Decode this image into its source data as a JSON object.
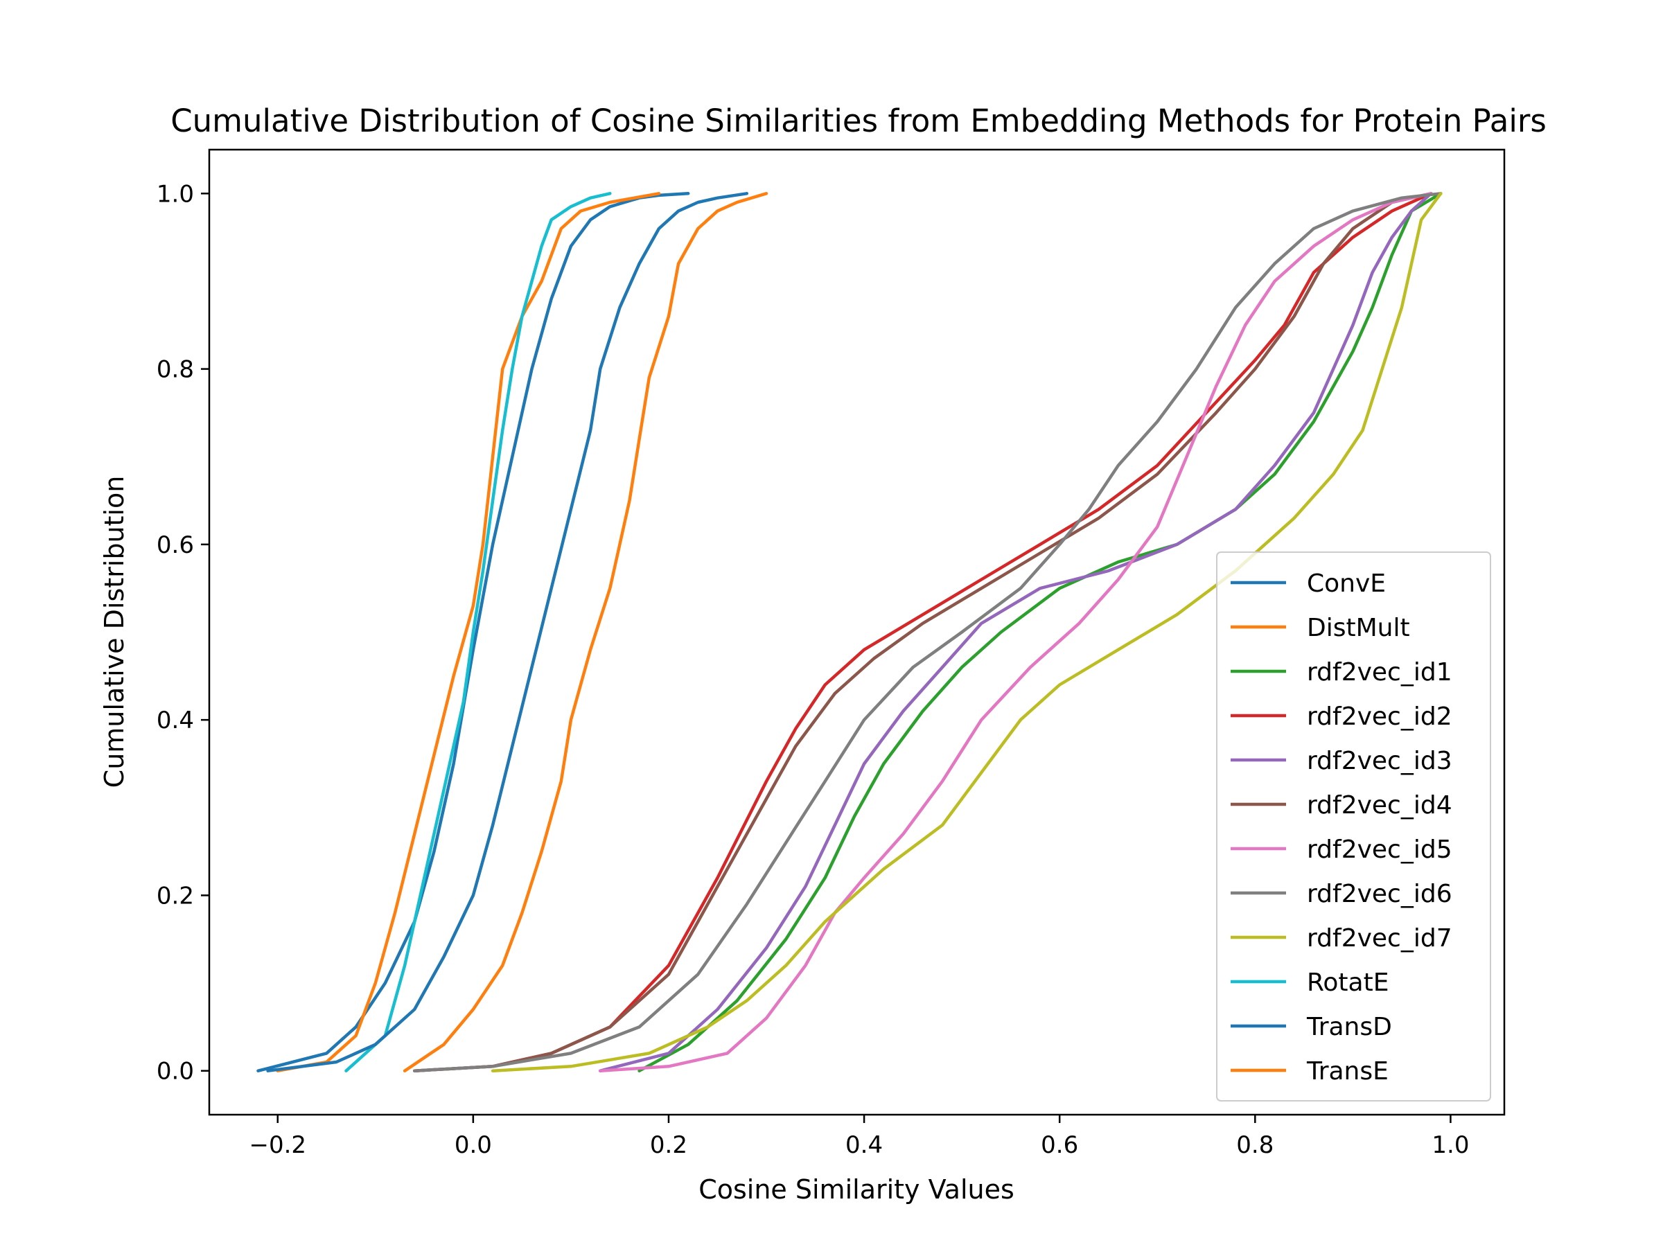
{
  "chart_data": {
    "type": "line",
    "title": "Cumulative Distribution of Cosine Similarities from Embedding Methods for Protein Pairs",
    "xlabel": "Cosine Similarity Values",
    "ylabel": "Cumulative Distribution",
    "xlim": [
      -0.27,
      1.055
    ],
    "ylim": [
      -0.05,
      1.05
    ],
    "xticks": [
      -0.2,
      0.0,
      0.2,
      0.4,
      0.6,
      0.8,
      1.0
    ],
    "xtick_labels": [
      "−0.2",
      "0.0",
      "0.2",
      "0.4",
      "0.6",
      "0.8",
      "1.0"
    ],
    "yticks": [
      0.0,
      0.2,
      0.4,
      0.6,
      0.8,
      1.0
    ],
    "ytick_labels": [
      "0.0",
      "0.2",
      "0.4",
      "0.6",
      "0.8",
      "1.0"
    ],
    "grid": false,
    "legend": "lower-right",
    "series": [
      {
        "name": "ConvE",
        "color": "#1f77b4",
        "x": [
          -0.22,
          -0.15,
          -0.12,
          -0.09,
          -0.06,
          -0.04,
          -0.02,
          0.0,
          0.02,
          0.04,
          0.06,
          0.08,
          0.1,
          0.12,
          0.14,
          0.17,
          0.19,
          0.22
        ],
        "y": [
          0.0,
          0.02,
          0.05,
          0.1,
          0.17,
          0.25,
          0.35,
          0.48,
          0.6,
          0.7,
          0.8,
          0.88,
          0.94,
          0.97,
          0.985,
          0.995,
          0.998,
          1.0
        ]
      },
      {
        "name": "DistMult",
        "color": "#ff7f0e",
        "x": [
          -0.2,
          -0.15,
          -0.12,
          -0.1,
          -0.08,
          -0.06,
          -0.04,
          -0.02,
          0.0,
          0.01,
          0.02,
          0.03,
          0.05,
          0.07,
          0.09,
          0.11,
          0.14,
          0.19
        ],
        "y": [
          0.0,
          0.01,
          0.04,
          0.1,
          0.18,
          0.27,
          0.36,
          0.45,
          0.53,
          0.6,
          0.7,
          0.8,
          0.86,
          0.9,
          0.96,
          0.98,
          0.99,
          1.0
        ]
      },
      {
        "name": "rdf2vec_id1",
        "color": "#2ca02c",
        "x": [
          0.17,
          0.22,
          0.27,
          0.32,
          0.36,
          0.39,
          0.42,
          0.46,
          0.5,
          0.54,
          0.6,
          0.66,
          0.72,
          0.78,
          0.82,
          0.86,
          0.88,
          0.9,
          0.92,
          0.94,
          0.96,
          0.99
        ],
        "y": [
          0.0,
          0.03,
          0.08,
          0.15,
          0.22,
          0.29,
          0.35,
          0.41,
          0.46,
          0.5,
          0.55,
          0.58,
          0.6,
          0.64,
          0.68,
          0.74,
          0.78,
          0.82,
          0.87,
          0.93,
          0.98,
          1.0
        ]
      },
      {
        "name": "rdf2vec_id2",
        "color": "#d62728",
        "x": [
          -0.06,
          0.02,
          0.08,
          0.14,
          0.2,
          0.25,
          0.3,
          0.33,
          0.36,
          0.4,
          0.46,
          0.52,
          0.58,
          0.64,
          0.7,
          0.75,
          0.8,
          0.83,
          0.86,
          0.9,
          0.94,
          0.98
        ],
        "y": [
          0.0,
          0.005,
          0.02,
          0.05,
          0.12,
          0.22,
          0.33,
          0.39,
          0.44,
          0.48,
          0.52,
          0.56,
          0.6,
          0.64,
          0.69,
          0.75,
          0.81,
          0.85,
          0.91,
          0.95,
          0.98,
          1.0
        ]
      },
      {
        "name": "rdf2vec_id3",
        "color": "#9467bd",
        "x": [
          0.13,
          0.2,
          0.25,
          0.3,
          0.34,
          0.37,
          0.4,
          0.44,
          0.48,
          0.52,
          0.58,
          0.65,
          0.72,
          0.78,
          0.82,
          0.86,
          0.88,
          0.9,
          0.92,
          0.94,
          0.96,
          0.98
        ],
        "y": [
          0.0,
          0.02,
          0.07,
          0.14,
          0.21,
          0.28,
          0.35,
          0.41,
          0.46,
          0.51,
          0.55,
          0.57,
          0.6,
          0.64,
          0.69,
          0.75,
          0.8,
          0.85,
          0.91,
          0.95,
          0.98,
          1.0
        ]
      },
      {
        "name": "rdf2vec_id4",
        "color": "#8c564b",
        "x": [
          -0.06,
          0.02,
          0.08,
          0.14,
          0.2,
          0.25,
          0.3,
          0.33,
          0.37,
          0.41,
          0.46,
          0.52,
          0.58,
          0.64,
          0.7,
          0.76,
          0.8,
          0.84,
          0.87,
          0.9,
          0.94,
          0.98
        ],
        "y": [
          0.0,
          0.005,
          0.02,
          0.05,
          0.11,
          0.21,
          0.31,
          0.37,
          0.43,
          0.47,
          0.51,
          0.55,
          0.59,
          0.63,
          0.68,
          0.75,
          0.8,
          0.86,
          0.92,
          0.96,
          0.99,
          1.0
        ]
      },
      {
        "name": "rdf2vec_id5",
        "color": "#e377c2",
        "x": [
          0.13,
          0.2,
          0.26,
          0.3,
          0.34,
          0.37,
          0.4,
          0.44,
          0.48,
          0.52,
          0.57,
          0.62,
          0.66,
          0.7,
          0.73,
          0.76,
          0.79,
          0.82,
          0.86,
          0.9,
          0.94,
          0.98
        ],
        "y": [
          0.0,
          0.005,
          0.02,
          0.06,
          0.12,
          0.18,
          0.22,
          0.27,
          0.33,
          0.4,
          0.46,
          0.51,
          0.56,
          0.62,
          0.7,
          0.78,
          0.85,
          0.9,
          0.94,
          0.97,
          0.99,
          1.0
        ]
      },
      {
        "name": "rdf2vec_id6",
        "color": "#7f7f7f",
        "x": [
          -0.06,
          0.02,
          0.1,
          0.17,
          0.23,
          0.28,
          0.32,
          0.36,
          0.4,
          0.45,
          0.5,
          0.56,
          0.6,
          0.63,
          0.66,
          0.7,
          0.74,
          0.78,
          0.82,
          0.86,
          0.9,
          0.95,
          0.99
        ],
        "y": [
          0.0,
          0.005,
          0.02,
          0.05,
          0.11,
          0.19,
          0.26,
          0.33,
          0.4,
          0.46,
          0.5,
          0.55,
          0.6,
          0.64,
          0.69,
          0.74,
          0.8,
          0.87,
          0.92,
          0.96,
          0.98,
          0.995,
          1.0
        ]
      },
      {
        "name": "rdf2vec_id7",
        "color": "#bcbd22",
        "x": [
          0.02,
          0.1,
          0.18,
          0.24,
          0.28,
          0.32,
          0.36,
          0.42,
          0.48,
          0.52,
          0.56,
          0.6,
          0.66,
          0.72,
          0.78,
          0.84,
          0.88,
          0.91,
          0.93,
          0.95,
          0.96,
          0.97,
          0.99
        ],
        "y": [
          0.0,
          0.005,
          0.02,
          0.05,
          0.08,
          0.12,
          0.17,
          0.23,
          0.28,
          0.34,
          0.4,
          0.44,
          0.48,
          0.52,
          0.57,
          0.63,
          0.68,
          0.73,
          0.8,
          0.87,
          0.92,
          0.97,
          1.0
        ]
      },
      {
        "name": "RotatE",
        "color": "#17becf",
        "x": [
          -0.13,
          -0.09,
          -0.07,
          -0.05,
          -0.03,
          -0.01,
          0.0,
          0.01,
          0.02,
          0.03,
          0.04,
          0.05,
          0.06,
          0.07,
          0.08,
          0.1,
          0.12,
          0.14
        ],
        "y": [
          0.0,
          0.04,
          0.12,
          0.22,
          0.32,
          0.42,
          0.5,
          0.57,
          0.65,
          0.73,
          0.8,
          0.86,
          0.9,
          0.94,
          0.97,
          0.985,
          0.995,
          1.0
        ]
      },
      {
        "name": "TransD",
        "color": "#1f77b4",
        "x": [
          -0.21,
          -0.14,
          -0.1,
          -0.06,
          -0.03,
          0.0,
          0.02,
          0.04,
          0.06,
          0.08,
          0.1,
          0.12,
          0.13,
          0.15,
          0.17,
          0.19,
          0.21,
          0.23,
          0.25,
          0.28
        ],
        "y": [
          0.0,
          0.01,
          0.03,
          0.07,
          0.13,
          0.2,
          0.28,
          0.37,
          0.46,
          0.55,
          0.64,
          0.73,
          0.8,
          0.87,
          0.92,
          0.96,
          0.98,
          0.99,
          0.995,
          1.0
        ]
      },
      {
        "name": "TransE",
        "color": "#ff7f0e",
        "x": [
          -0.07,
          -0.03,
          0.0,
          0.03,
          0.05,
          0.07,
          0.09,
          0.1,
          0.12,
          0.14,
          0.15,
          0.16,
          0.17,
          0.18,
          0.2,
          0.21,
          0.23,
          0.25,
          0.27,
          0.3
        ],
        "y": [
          0.0,
          0.03,
          0.07,
          0.12,
          0.18,
          0.25,
          0.33,
          0.4,
          0.48,
          0.55,
          0.6,
          0.65,
          0.72,
          0.79,
          0.86,
          0.92,
          0.96,
          0.98,
          0.99,
          1.0
        ]
      }
    ]
  }
}
